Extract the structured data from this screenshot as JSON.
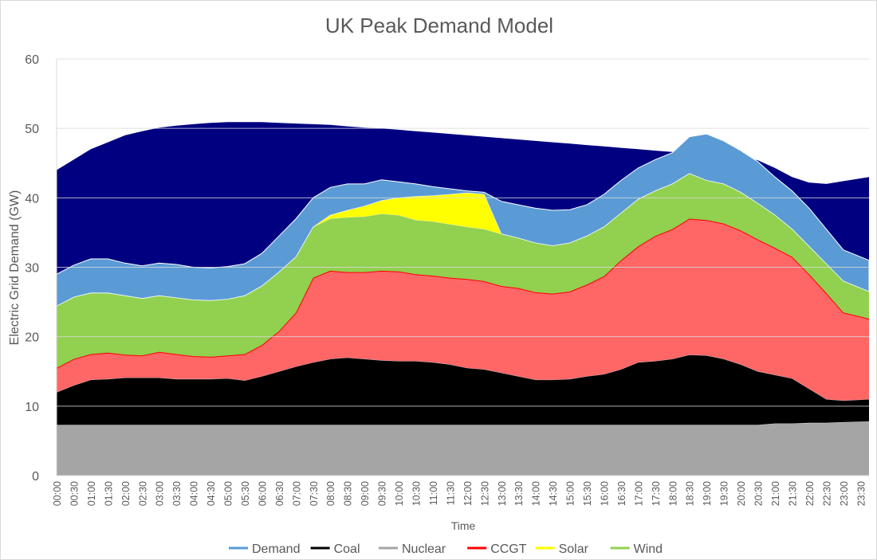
{
  "chart_data": {
    "type": "area",
    "stacked": true,
    "title": "UK Peak Demand Model",
    "xlabel": "Time",
    "ylabel": "Electric Grid Demand (GW)",
    "ylim": [
      0,
      60
    ],
    "yticks": [
      0,
      10,
      20,
      30,
      40,
      50,
      60
    ],
    "grid": true,
    "legend_position": "bottom",
    "x": [
      "00:00",
      "00:30",
      "01:00",
      "01:30",
      "02:00",
      "02:30",
      "03:00",
      "03:30",
      "04:00",
      "04:30",
      "05:00",
      "05:30",
      "06:00",
      "06:30",
      "07:00",
      "07:30",
      "08:00",
      "08:30",
      "09:00",
      "09:30",
      "10:00",
      "10:30",
      "11:00",
      "11:30",
      "12:00",
      "12:30",
      "13:00",
      "13:30",
      "14:00",
      "14:30",
      "15:00",
      "15:30",
      "16:00",
      "16:30",
      "17:00",
      "17:30",
      "18:00",
      "18:30",
      "19:00",
      "19:30",
      "20:00",
      "20:30",
      "21:00",
      "21:30",
      "22:00",
      "22:30",
      "23:00",
      "23:30"
    ],
    "background_series": [
      {
        "name": "",
        "color": "#000080",
        "values": [
          44,
          45.5,
          47,
          48,
          49,
          49.6,
          50.1,
          50.4,
          50.6,
          50.8,
          50.9,
          50.9,
          50.9,
          50.8,
          50.7,
          50.6,
          50.5,
          50.3,
          50.1,
          50.0,
          49.8,
          49.6,
          49.4,
          49.2,
          49.0,
          48.8,
          48.6,
          48.4,
          48.2,
          48.0,
          47.8,
          47.6,
          47.4,
          47.2,
          47.0,
          46.8,
          46.6,
          46.5,
          46.4,
          46.3,
          46.0,
          45.4,
          44.3,
          43.0,
          42.2,
          42.0,
          42.4,
          43.0
        ]
      },
      {
        "name": "Demand",
        "color": "#5b9bd5",
        "values": [
          29,
          30.3,
          31.2,
          31.2,
          30.6,
          30.2,
          30.6,
          30.4,
          30.0,
          29.9,
          30.1,
          30.5,
          32.0,
          34.5,
          37.0,
          40.0,
          41.5,
          42.0,
          42.0,
          42.6,
          42.3,
          42.0,
          41.6,
          41.3,
          41.0,
          40.8,
          39.5,
          39.0,
          38.5,
          38.2,
          38.3,
          39.0,
          40.5,
          42.5,
          44.3,
          45.5,
          46.5,
          48.8,
          49.2,
          48.2,
          46.8,
          45.2,
          43.0,
          41.0,
          38.5,
          35.5,
          32.5,
          31.0
        ]
      }
    ],
    "series": [
      {
        "name": "Nuclear",
        "color": "#a5a5a5",
        "line": "#a5a5a5",
        "values": [
          7.3,
          7.3,
          7.3,
          7.3,
          7.3,
          7.3,
          7.3,
          7.3,
          7.3,
          7.3,
          7.3,
          7.3,
          7.3,
          7.3,
          7.3,
          7.3,
          7.3,
          7.3,
          7.3,
          7.3,
          7.3,
          7.3,
          7.3,
          7.3,
          7.3,
          7.3,
          7.3,
          7.3,
          7.3,
          7.3,
          7.3,
          7.3,
          7.3,
          7.3,
          7.3,
          7.3,
          7.3,
          7.3,
          7.3,
          7.3,
          7.3,
          7.3,
          7.5,
          7.5,
          7.6,
          7.6,
          7.7,
          7.8
        ]
      },
      {
        "name": "Coal",
        "color": "#000000",
        "line": "#000000",
        "values": [
          4.7,
          5.7,
          6.5,
          6.6,
          6.8,
          6.8,
          6.8,
          6.6,
          6.6,
          6.6,
          6.7,
          6.4,
          7.0,
          7.7,
          8.4,
          9.0,
          9.5,
          9.7,
          9.5,
          9.3,
          9.2,
          9.2,
          9.0,
          8.7,
          8.2,
          8.0,
          7.5,
          7.0,
          6.5,
          6.5,
          6.6,
          7.0,
          7.3,
          8.0,
          9.0,
          9.2,
          9.5,
          10.1,
          10.0,
          9.5,
          8.7,
          7.7,
          7.0,
          6.5,
          4.9,
          3.4,
          3.1,
          3.2
        ]
      },
      {
        "name": "CCGT",
        "color": "#ff6666",
        "line": "#ff0000",
        "values": [
          3.5,
          3.8,
          3.7,
          3.8,
          3.3,
          3.2,
          3.7,
          3.6,
          3.3,
          3.2,
          3.3,
          3.8,
          4.5,
          5.8,
          7.8,
          12.2,
          12.7,
          12.3,
          12.5,
          12.9,
          12.9,
          12.5,
          12.5,
          12.5,
          12.8,
          12.7,
          12.5,
          12.7,
          12.6,
          12.4,
          12.6,
          13.2,
          14.1,
          15.7,
          16.7,
          18.0,
          18.7,
          19.6,
          19.5,
          19.5,
          19.3,
          19.0,
          18.3,
          17.5,
          16.5,
          15.3,
          12.7,
          11.6
        ]
      },
      {
        "name": "Wind",
        "color": "#92d050",
        "line": "#92d050",
        "values": [
          8.9,
          8.9,
          8.8,
          8.6,
          8.5,
          8.2,
          8.1,
          8.1,
          8.1,
          8.1,
          8.1,
          8.4,
          8.5,
          8.5,
          8.0,
          7.3,
          7.5,
          7.9,
          8.0,
          8.2,
          8.1,
          7.8,
          7.8,
          7.7,
          7.5,
          7.5,
          7.5,
          7.2,
          7.1,
          6.9,
          7.0,
          7.0,
          7.1,
          6.8,
          6.8,
          6.5,
          6.5,
          6.5,
          5.7,
          5.7,
          5.5,
          5.2,
          4.7,
          4.0,
          4.0,
          4.2,
          4.5,
          3.9
        ]
      },
      {
        "name": "Solar",
        "color": "#ffff00",
        "line": "#ffff00",
        "values": [
          0,
          0,
          0,
          0,
          0,
          0,
          0,
          0,
          0,
          0,
          0,
          0,
          0,
          0,
          0,
          0,
          0.5,
          1.0,
          1.5,
          1.9,
          2.5,
          3.4,
          3.7,
          4.3,
          4.9,
          5.0,
          0,
          0,
          0,
          0,
          0,
          0,
          0,
          0,
          0,
          0,
          0,
          0,
          0,
          0,
          0,
          0,
          0,
          0,
          0,
          0,
          0,
          0
        ]
      }
    ],
    "legend": [
      {
        "label": "Demand",
        "color": "#5b9bd5"
      },
      {
        "label": "Coal",
        "color": "#000000"
      },
      {
        "label": "Nuclear",
        "color": "#a5a5a5"
      },
      {
        "label": "CCGT",
        "color": "#ff0000"
      },
      {
        "label": "Solar",
        "color": "#ffff00"
      },
      {
        "label": "Wind",
        "color": "#92d050"
      }
    ]
  }
}
